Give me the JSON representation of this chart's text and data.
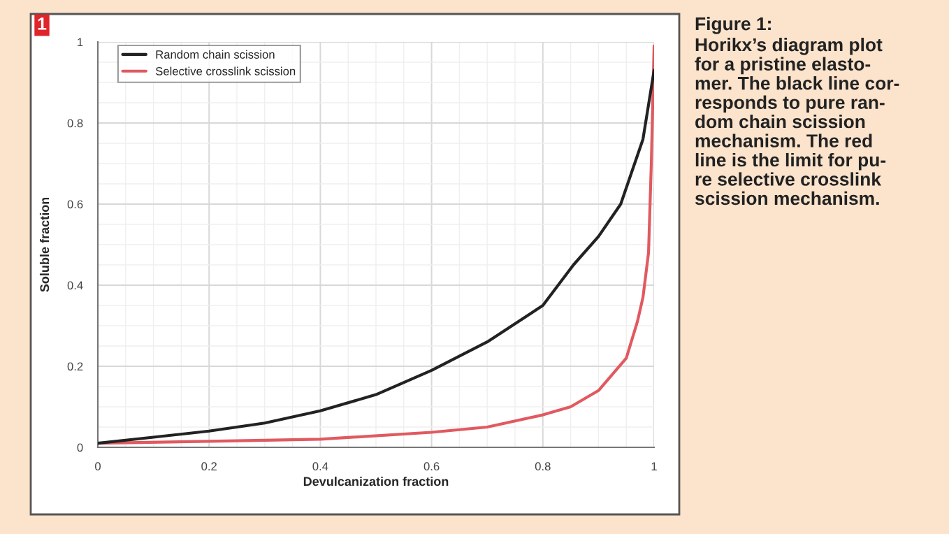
{
  "chart_data": {
    "type": "line",
    "xlabel": "Devulcanization fraction",
    "ylabel": "Soluble fraction",
    "xlim": [
      0,
      1
    ],
    "ylim": [
      0,
      1
    ],
    "xticks": [
      0,
      0.2,
      0.4,
      0.6,
      0.8,
      1
    ],
    "yticks": [
      0,
      0.2,
      0.4,
      0.6,
      0.8,
      1
    ],
    "grid": true,
    "legend": "top left",
    "marker": "none",
    "line_style": "solid",
    "annotations": [
      "1",
      "Figure 1:",
      "Horikx’s diagram plot\nfor a pristine elasto-\nmer. The black line cor-\nresponds to pure ran-\ndom chain scission\nmechanism. The red\nline is the limit for pu-\nre selective crosslink\nscission mechanism."
    ],
    "series": [
      {
        "name": "Random chain scission",
        "color": "#222222",
        "x": [
          0,
          0.1,
          0.2,
          0.3,
          0.4,
          0.5,
          0.6,
          0.7,
          0.8,
          0.855,
          0.9,
          0.94,
          0.98,
          1
        ],
        "values": [
          0.01,
          0.025,
          0.04,
          0.06,
          0.09,
          0.13,
          0.19,
          0.26,
          0.35,
          0.45,
          0.52,
          0.6,
          0.76,
          0.93
        ]
      },
      {
        "name": "Selective crosslink scission",
        "color": "#e05a60",
        "x": [
          0,
          0.2,
          0.4,
          0.6,
          0.7,
          0.8,
          0.85,
          0.9,
          0.95,
          0.97,
          0.98,
          0.99,
          0.995,
          1
        ],
        "values": [
          0.01,
          0.015,
          0.02,
          0.037,
          0.05,
          0.08,
          0.1,
          0.14,
          0.22,
          0.31,
          0.37,
          0.48,
          0.7,
          0.99
        ]
      }
    ]
  }
}
